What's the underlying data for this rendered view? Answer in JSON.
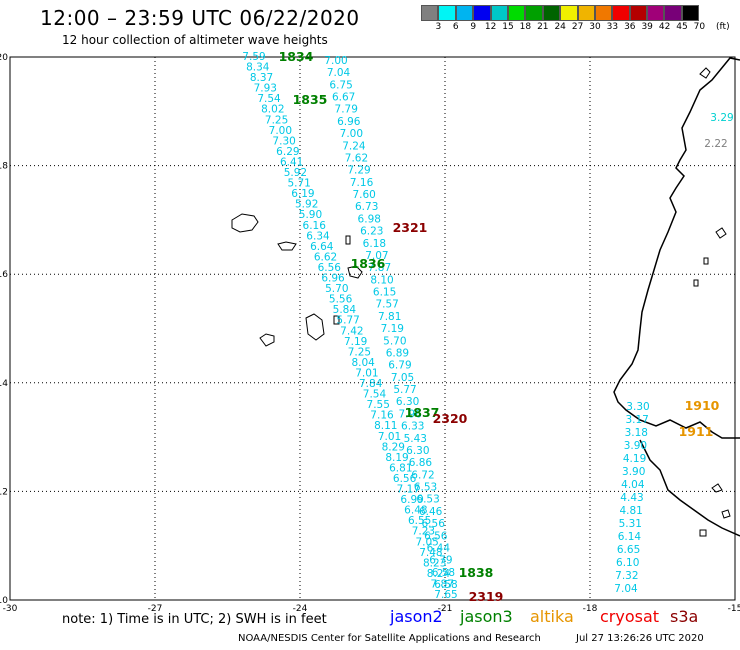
{
  "header": {
    "title": "12:00 – 23:59 UTC 06/22/2020",
    "subtitle": "12 hour collection of altimeter wave heights"
  },
  "colorbar": {
    "colors": [
      "#808080",
      "#00f5f5",
      "#00b4f0",
      "#0000f0",
      "#00c8c8",
      "#00dc00",
      "#00a000",
      "#006400",
      "#f0f000",
      "#f0b400",
      "#f07800",
      "#f00000",
      "#b40000",
      "#a00078",
      "#780078",
      "#000000"
    ],
    "labels": [
      "3",
      "6",
      "9",
      "12",
      "15",
      "18",
      "21",
      "24",
      "27",
      "30",
      "33",
      "36",
      "39",
      "42",
      "45",
      "70",
      "(ft)"
    ]
  },
  "axes": {
    "x_ticks": [
      "-30",
      "-27",
      "-24",
      "-21",
      "-18",
      "-15"
    ],
    "y_ticks": [
      "20",
      "18",
      "16",
      "14",
      "12",
      "10"
    ]
  },
  "passes": [
    {
      "label": "1834",
      "color": "#008000"
    },
    {
      "label": "1835",
      "color": "#008000"
    },
    {
      "label": "1836",
      "color": "#008000"
    },
    {
      "label": "1837",
      "color": "#008000"
    },
    {
      "label": "1838",
      "color": "#008000"
    },
    {
      "label": "2321",
      "color": "#8b0000"
    },
    {
      "label": "2320",
      "color": "#8b0000"
    },
    {
      "label": "2319",
      "color": "#8b0000"
    },
    {
      "label": "1910",
      "color": "#e69500"
    },
    {
      "label": "1911",
      "color": "#e69500"
    }
  ],
  "track_a_values": [
    "7.59",
    "8.34",
    "8.37",
    "7.93",
    "7.54",
    "8.02",
    "7.25",
    "7.00",
    "7.30",
    "6.29",
    "6.41",
    "5.92",
    "5.71",
    "6.19",
    "5.92",
    "5.90",
    "6.16",
    "6.34",
    "6.64",
    "6.62",
    "6.56",
    "6.96",
    "5.70",
    "5.56",
    "5.84",
    "5.77",
    "7.42",
    "7.19",
    "7.25",
    "8.04",
    "7.01",
    "7.84",
    "7.54",
    "7.55",
    "7.16",
    "8.11",
    "7.01",
    "8.29",
    "8.19",
    "6.81",
    "6.56",
    "7.17",
    "6.99",
    "6.48",
    "6.55",
    "7.23",
    "7.05",
    "7.48",
    "8.23",
    "8.24",
    "7.87",
    "7.65"
  ],
  "track_b_values": [
    "7.00",
    "7.04",
    "6.75",
    "6.67",
    "7.79",
    "6.96",
    "7.00",
    "7.24",
    "7.62",
    "7.29",
    "7.16",
    "7.60",
    "6.73",
    "6.98",
    "6.23",
    "6.18",
    "7.07",
    "7.87",
    "8.10",
    "6.15",
    "7.57",
    "7.81",
    "7.19",
    "5.70",
    "6.89",
    "6.79",
    "7.05",
    "5.77",
    "6.30",
    "7.96",
    "6.33",
    "5.43",
    "6.30",
    "6.86",
    "6.72",
    "6.53",
    "6.53",
    "6.46",
    "6.56",
    "6.56",
    "6.44",
    "6.79",
    "6.58",
    "6.58"
  ],
  "track_c_values": [
    "3.30",
    "3.17",
    "3.18",
    "3.90",
    "4.19",
    "3.90",
    "4.04",
    "4.43",
    "4.81",
    "5.31",
    "6.14",
    "6.65",
    "6.10",
    "7.32",
    "7.04"
  ],
  "coastal_values": [
    {
      "v": "3.29",
      "color": "#00d0d0"
    },
    {
      "v": "2.22",
      "color": "#808080"
    }
  ],
  "legend_note": "note:  1) Time is in UTC;  2) SWH is in feet",
  "satellites": [
    {
      "name": "jason2",
      "color": "#0000ff"
    },
    {
      "name": "jason3",
      "color": "#008000"
    },
    {
      "name": "altika",
      "color": "#e69500"
    },
    {
      "name": "cryosat",
      "color": "#f00000"
    },
    {
      "name": "s3a",
      "color": "#8b0000"
    }
  ],
  "credit": "NOAA/NESDIS Center for Satellite Applications and Research",
  "timestamp": "Jul 27 13:26:26 UTC 2020"
}
